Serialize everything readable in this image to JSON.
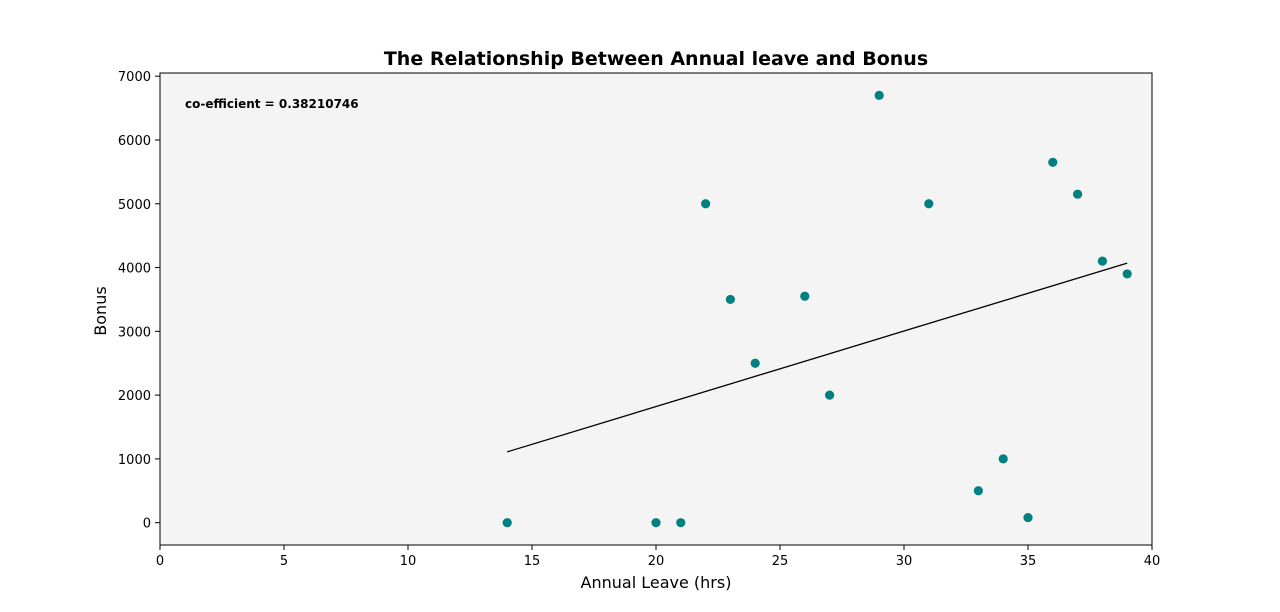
{
  "chart_data": {
    "type": "scatter",
    "title": "The Relationship Between Annual leave and Bonus",
    "xlabel": "Annual Leave (hrs)",
    "ylabel": "Bonus",
    "xlim": [
      0,
      40
    ],
    "ylim": [
      -350,
      7050
    ],
    "xticks": [
      0,
      5,
      10,
      15,
      20,
      25,
      30,
      35,
      40
    ],
    "yticks": [
      0,
      1000,
      2000,
      3000,
      4000,
      5000,
      6000,
      7000
    ],
    "grid": false,
    "annotation": "co-efficient = 0.38210746",
    "colors": {
      "points": "#008080",
      "trend": "#000000",
      "plot_bg": "#f4f4f4"
    },
    "series": [
      {
        "x": [
          14,
          20,
          21,
          22,
          23,
          24,
          26,
          27,
          29,
          31,
          33,
          34,
          35,
          36,
          37,
          38,
          39
        ],
        "y": [
          0,
          0,
          0,
          5000,
          3500,
          2500,
          3550,
          2000,
          6700,
          5000,
          500,
          1000,
          80,
          5650,
          5150,
          4100,
          3900
        ]
      }
    ],
    "trend_line": {
      "x": [
        14,
        39
      ],
      "y": [
        1110,
        4070
      ]
    }
  }
}
